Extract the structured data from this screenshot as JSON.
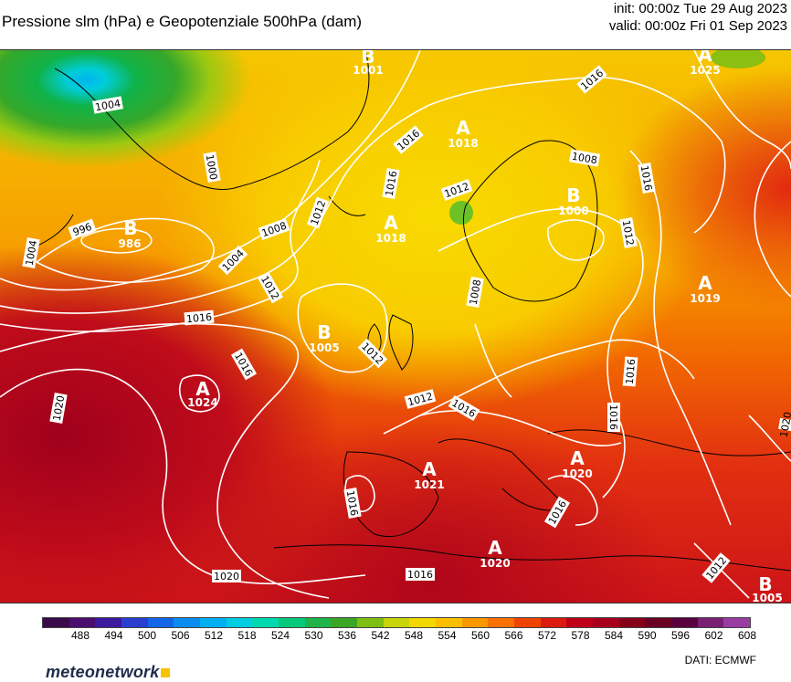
{
  "header": {
    "title": "Pressione slm (hPa) e Geopotenziale 500hPa (dam)",
    "init": "init: 00:00z Tue 29 Aug 2023",
    "valid": "valid: 00:00z Fri 01 Sep 2023"
  },
  "pressure_centers": [
    {
      "type": "B",
      "value": "986"
    },
    {
      "type": "B",
      "value": "1001"
    },
    {
      "type": "A",
      "value": "1018"
    },
    {
      "type": "A",
      "value": "1018"
    },
    {
      "type": "B",
      "value": "1000"
    },
    {
      "type": "A",
      "value": "1025"
    },
    {
      "type": "A",
      "value": "1019"
    },
    {
      "type": "B",
      "value": "1005"
    },
    {
      "type": "A",
      "value": "1024"
    },
    {
      "type": "A",
      "value": "1021"
    },
    {
      "type": "A",
      "value": "1020"
    },
    {
      "type": "A",
      "value": "1020"
    },
    {
      "type": "B",
      "value": "1005"
    }
  ],
  "isobar_labels": [
    "1004",
    "1000",
    "996",
    "1004",
    "1004",
    "1008",
    "1012",
    "1016",
    "1016",
    "1012",
    "1016",
    "1008",
    "1016",
    "1016",
    "1012",
    "1008",
    "1012",
    "1016",
    "1012",
    "1016",
    "1016",
    "1020",
    "1020",
    "1012",
    "1016",
    "1016",
    "1016",
    "1020",
    "1016",
    "1012"
  ],
  "colorbar": {
    "ticks": [
      "488",
      "494",
      "500",
      "506",
      "512",
      "518",
      "524",
      "530",
      "536",
      "542",
      "548",
      "554",
      "560",
      "566",
      "572",
      "578",
      "584",
      "590",
      "596",
      "602",
      "608"
    ],
    "colors": [
      "#3a0a4a",
      "#4b0d6e",
      "#3b1a9e",
      "#2a3fd0",
      "#1466e8",
      "#0a8cf0",
      "#00aef2",
      "#00cde0",
      "#00d9b0",
      "#05c97a",
      "#1fb44a",
      "#3aa624",
      "#7fbf14",
      "#c8d50a",
      "#f2d700",
      "#fbbf00",
      "#fb9800",
      "#f77000",
      "#ee4400",
      "#dc1a10",
      "#c00018",
      "#a8001c",
      "#86001a",
      "#6a0022",
      "#5a0040",
      "#7a1f74",
      "#9a3da0"
    ]
  },
  "footer": {
    "logo": "meteonetwork",
    "credit": "DATI:  ECMWF"
  },
  "colors": {
    "low_geopotential": "#1fb44a",
    "high_geopotential": "#c00018",
    "isobar": "#ffffff"
  }
}
